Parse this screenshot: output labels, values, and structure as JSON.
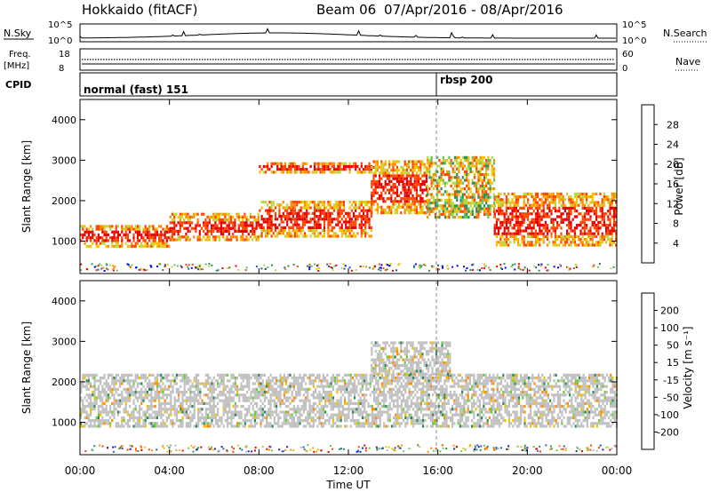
{
  "header": {
    "station": "Hokkaido (fitACF)",
    "beam": "Beam 06",
    "dates": "07/Apr/2016 - 08/Apr/2016"
  },
  "strips": {
    "nsky_label": "N.Sky",
    "nsky_ticks": [
      "10^5",
      "10^0"
    ],
    "nsearch_label": "N.Search",
    "nsearch_ticks": [
      "10^5",
      "10^0"
    ],
    "freq_label": "Freq.",
    "freq_unit": "[MHz]",
    "freq_ticks": [
      "18",
      "8"
    ],
    "nave_label": "Nave",
    "nave_ticks": [
      "60",
      "0"
    ],
    "cpid_label": "CPID",
    "cpid_segments": [
      {
        "label": "normal (fast) 151",
        "start_hour": 0
      },
      {
        "label": "rbsp 200",
        "start_hour": 16
      }
    ]
  },
  "chart_data": [
    {
      "type": "heatmap",
      "name": "power",
      "ylabel": "Slant Range [km]",
      "ylim": [
        200,
        4500
      ],
      "yticks": [
        1000,
        2000,
        3000,
        4000
      ],
      "xlim": [
        0,
        24
      ],
      "colorbar": {
        "label": "Power [dB]",
        "ticks": [
          4,
          8,
          12,
          16,
          20,
          24,
          28
        ],
        "range": [
          0,
          32
        ],
        "colors": [
          "#0000ff",
          "#1e5aa0",
          "#2e8b57",
          "#5fc25f",
          "#b8d93a",
          "#f5c000",
          "#ff8c00",
          "#ff4500",
          "#e60000"
        ]
      },
      "bands": [
        {
          "hours": [
            0,
            4
          ],
          "ranges": [
            [
              900,
              1400
            ]
          ],
          "level": "high"
        },
        {
          "hours": [
            4,
            8
          ],
          "ranges": [
            [
              1000,
              1700
            ]
          ],
          "level": "high"
        },
        {
          "hours": [
            8,
            13
          ],
          "ranges": [
            [
              1150,
              2000
            ],
            [
              2700,
              2950
            ]
          ],
          "level": "high"
        },
        {
          "hours": [
            13,
            15.5
          ],
          "ranges": [
            [
              1700,
              3000
            ]
          ],
          "level": "high"
        },
        {
          "hours": [
            18.5,
            24
          ],
          "ranges": [
            [
              900,
              2200
            ]
          ],
          "level": "high"
        },
        {
          "hours": [
            15.5,
            18.5
          ],
          "ranges": [
            [
              1600,
              3100
            ]
          ],
          "level": "mixed"
        }
      ]
    },
    {
      "type": "heatmap",
      "name": "velocity",
      "ylabel": "Slant Range [km]",
      "xlabel": "Time UT",
      "ylim": [
        200,
        4500
      ],
      "yticks": [
        1000,
        2000,
        3000,
        4000
      ],
      "xlim": [
        0,
        24
      ],
      "xticks": [
        "00:00",
        "04:00",
        "08:00",
        "12:00",
        "16:00",
        "20:00",
        "00:00"
      ],
      "colorbar": {
        "label": "Velocity [m s⁻¹]",
        "ticks": [
          "200",
          "100",
          "50",
          "15",
          "-15",
          "-50",
          "-100",
          "-200"
        ],
        "colors": [
          "#1a2db0",
          "#2e5ec8",
          "#2e8b57",
          "#6ccc3c",
          "#c0c0c0",
          "#f0c000",
          "#ff8c00",
          "#ff4500",
          "#e60000"
        ]
      },
      "bands": [
        {
          "hours": [
            0,
            24
          ],
          "ranges": [
            [
              900,
              2200
            ]
          ],
          "level": "ground"
        },
        {
          "hours": [
            13,
            16.5
          ],
          "ranges": [
            [
              2200,
              3000
            ]
          ],
          "level": "ground"
        }
      ]
    }
  ]
}
